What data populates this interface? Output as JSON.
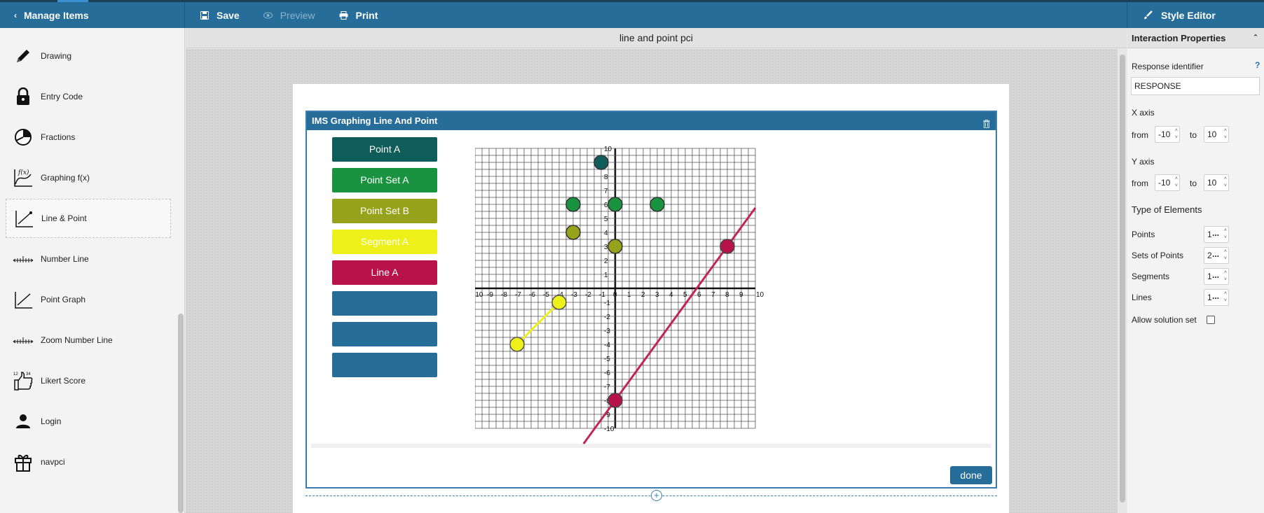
{
  "topbar": {
    "manage_items": "Manage Items",
    "save": "Save",
    "preview": "Preview",
    "print": "Print",
    "style_editor": "Style Editor"
  },
  "sidebar": {
    "items": [
      {
        "label": "Drawing",
        "icon": "pencil-icon"
      },
      {
        "label": "Entry Code",
        "icon": "lock-icon"
      },
      {
        "label": "Fractions",
        "icon": "pie-icon"
      },
      {
        "label": "Graphing f(x)",
        "icon": "function-graph-icon"
      },
      {
        "label": "Line & Point",
        "icon": "line-point-icon"
      },
      {
        "label": "Number Line",
        "icon": "number-line-icon"
      },
      {
        "label": "Point Graph",
        "icon": "point-graph-icon"
      },
      {
        "label": "Zoom Number Line",
        "icon": "zoom-number-line-icon"
      },
      {
        "label": "Likert Score",
        "icon": "thumbs-up-icon"
      },
      {
        "label": "Login",
        "icon": "user-icon"
      },
      {
        "label": "navpci",
        "icon": "gift-icon"
      }
    ]
  },
  "item_title": "line and point pci",
  "widget": {
    "title": "IMS Graphing Line And Point",
    "buttons": [
      {
        "label": "Point A",
        "color": "#0e5d5a"
      },
      {
        "label": "Point Set A",
        "color": "#1a9340"
      },
      {
        "label": "Point Set B",
        "color": "#97a21b"
      },
      {
        "label": "Segment A",
        "color": "#eef01a"
      },
      {
        "label": "Line A",
        "color": "#b8124b"
      },
      {
        "label": "",
        "color": "#266d9a"
      },
      {
        "label": "",
        "color": "#266d9a"
      },
      {
        "label": "",
        "color": "#266d9a"
      }
    ],
    "done": "done"
  },
  "chart_data": {
    "type": "scatter",
    "xlim": [
      -10,
      10
    ],
    "ylim": [
      -10,
      10
    ],
    "grid": true,
    "x_ticks": [
      -10,
      -9,
      -8,
      -7,
      -6,
      -5,
      -4,
      -3,
      -2,
      -1,
      0,
      1,
      2,
      3,
      4,
      5,
      6,
      7,
      8,
      9,
      10
    ],
    "y_ticks": [
      -10,
      -9,
      -8,
      -7,
      -6,
      -5,
      -4,
      -3,
      -2,
      -1,
      0,
      1,
      2,
      3,
      4,
      5,
      6,
      7,
      8,
      9,
      10
    ],
    "points": [
      {
        "x": -1,
        "y": 9,
        "color": "#0e5d5a"
      },
      {
        "x": -3,
        "y": 6,
        "color": "#1a9340"
      },
      {
        "x": 0,
        "y": 6,
        "color": "#1a9340"
      },
      {
        "x": 3,
        "y": 6,
        "color": "#1a9340"
      },
      {
        "x": -3,
        "y": 4,
        "color": "#97a21b"
      },
      {
        "x": 0,
        "y": 3,
        "color": "#97a21b"
      }
    ],
    "segment": {
      "p1": [
        -7,
        -4
      ],
      "p2": [
        -4,
        -1
      ],
      "color": "#eef01a",
      "stroke": "#c9cd1e"
    },
    "line": {
      "p1": [
        0,
        -8
      ],
      "p2": [
        8,
        3
      ],
      "color": "#c2245a"
    }
  },
  "panel": {
    "header": "Interaction Properties",
    "response_identifier_label": "Response identifier",
    "help": "?",
    "response_identifier_value": "RESPONSE",
    "x_axis_label": "X axis",
    "y_axis_label": "Y axis",
    "from": "from",
    "to": "to",
    "x_from": "-10",
    "x_to": "10",
    "y_from": "-10",
    "y_to": "10",
    "type_of_elements": "Type of Elements",
    "points_label": "Points",
    "points_value": "1",
    "sets_label": "Sets of Points",
    "sets_value": "2",
    "segments_label": "Segments",
    "segments_value": "1",
    "lines_label": "Lines",
    "lines_value": "1",
    "more": "...",
    "allow_solution": "Allow solution set"
  }
}
